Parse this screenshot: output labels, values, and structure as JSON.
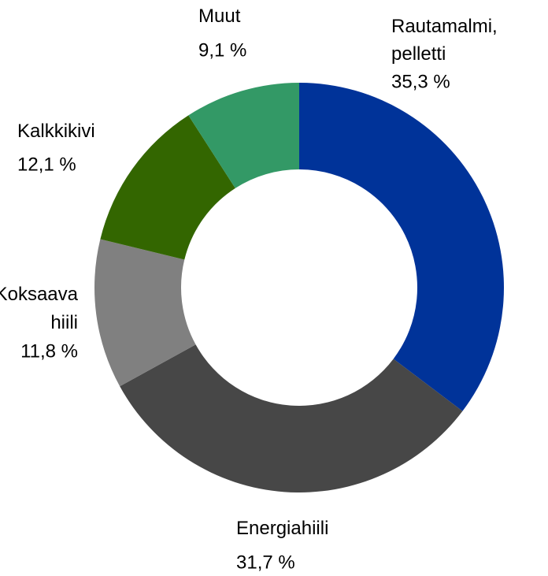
{
  "chart_data": {
    "type": "donut",
    "categories": [
      "Rautamalmi, pelletti",
      "Energiahiili",
      "Koksaava hiili",
      "Kalkkikivi",
      "Muut"
    ],
    "values": [
      35.3,
      31.7,
      11.8,
      12.1,
      9.1
    ],
    "value_labels": [
      "35,3 %",
      "31,7 %",
      "11,8 %",
      "12,1 %",
      "9,1 %"
    ],
    "colors": [
      "#003399",
      "#474747",
      "#808080",
      "#336600",
      "#339966"
    ]
  }
}
